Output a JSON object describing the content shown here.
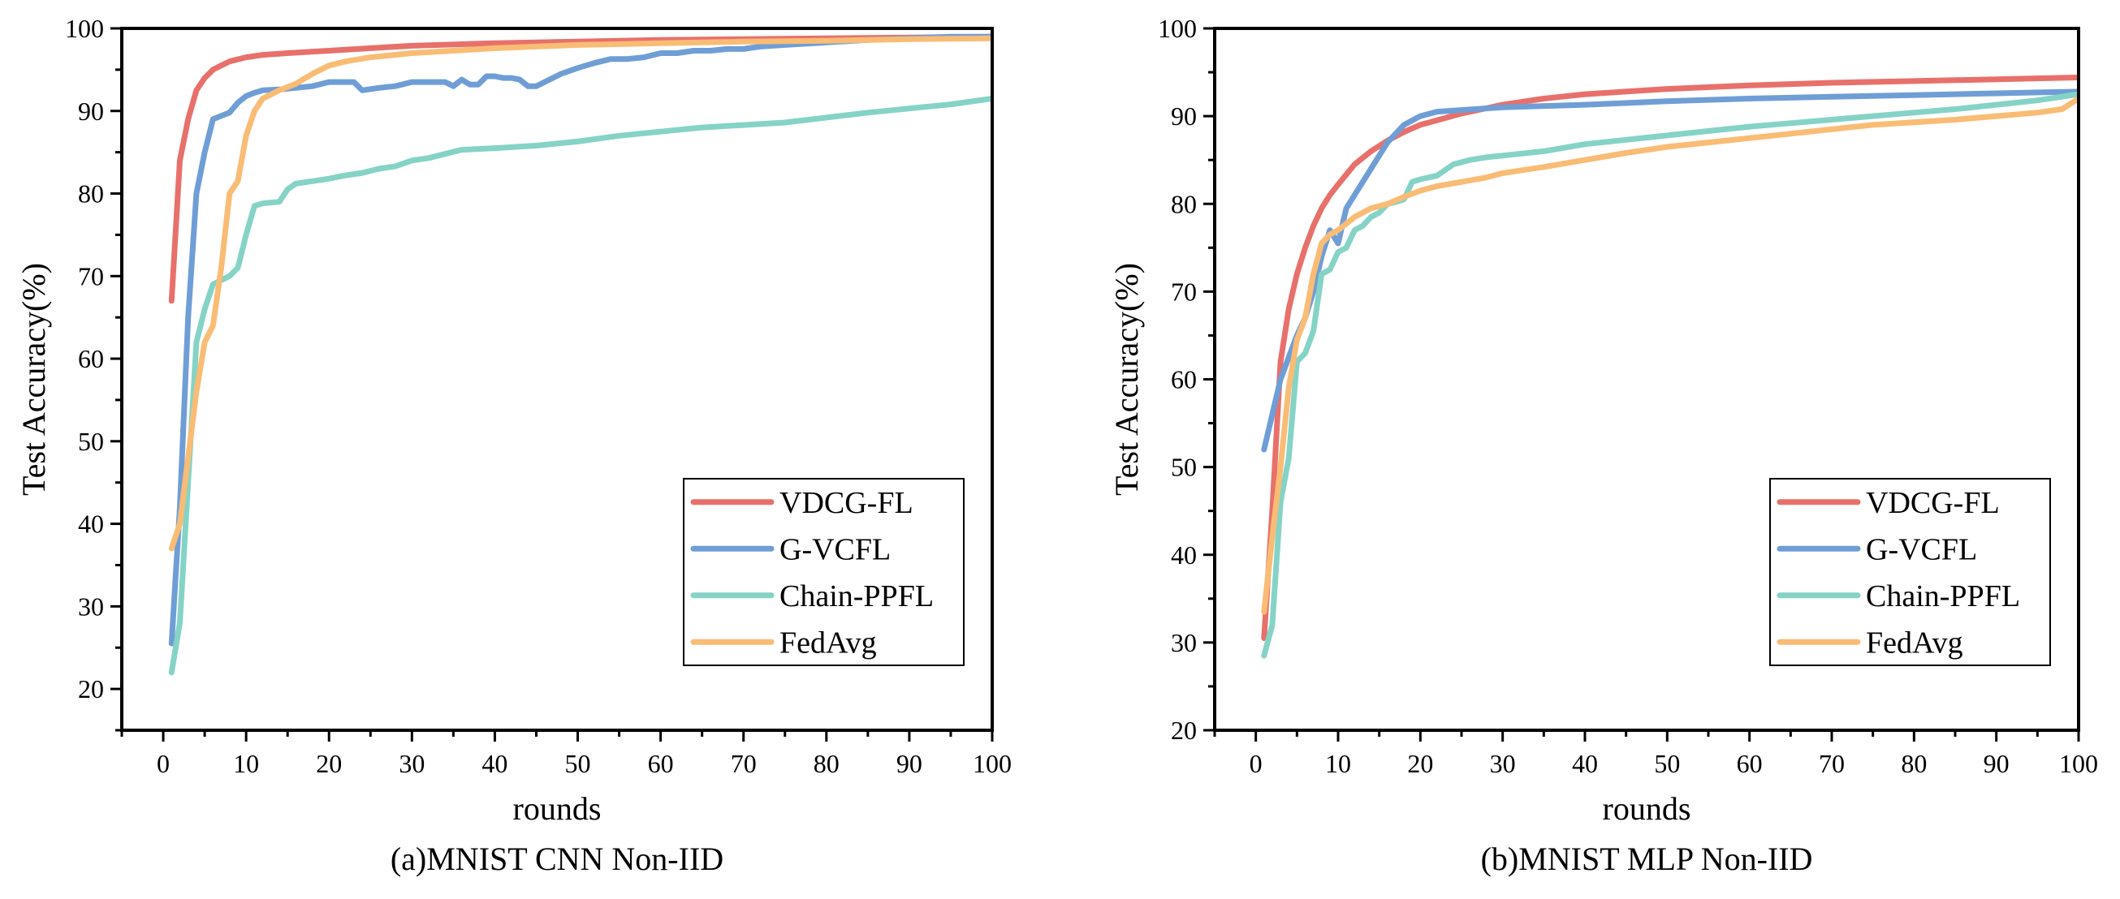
{
  "chart_data": [
    {
      "type": "line",
      "caption": "(a)MNIST CNN Non-IID",
      "xlabel": "rounds",
      "ylabel": "Test Accuracy(%)",
      "xlim": [
        -5,
        100
      ],
      "ylim": [
        15,
        100
      ],
      "xticks": [
        0,
        10,
        20,
        30,
        40,
        50,
        60,
        70,
        80,
        90,
        100
      ],
      "yticks": [
        20,
        30,
        40,
        50,
        60,
        70,
        80,
        90,
        100
      ],
      "grid": false,
      "legend_position": "bottom-right",
      "series": [
        {
          "name": "VDCG-FL",
          "color": "#e8706b",
          "x": [
            1,
            2,
            3,
            4,
            5,
            6,
            7,
            8,
            10,
            12,
            15,
            20,
            25,
            30,
            40,
            50,
            60,
            70,
            80,
            90,
            100
          ],
          "y": [
            67,
            84,
            89,
            92.5,
            94,
            95,
            95.5,
            96,
            96.5,
            96.8,
            97,
            97.3,
            97.6,
            97.9,
            98.2,
            98.4,
            98.6,
            98.7,
            98.8,
            98.9,
            99
          ]
        },
        {
          "name": "G-VCFL",
          "color": "#6f9ed6",
          "x": [
            1,
            2,
            3,
            4,
            5,
            6,
            8,
            9,
            10,
            11,
            12,
            14,
            16,
            18,
            20,
            22,
            23,
            24,
            26,
            28,
            30,
            32,
            34,
            35,
            36,
            37,
            38,
            39,
            40,
            41,
            42,
            43,
            44,
            45,
            46,
            48,
            50,
            52,
            54,
            56,
            58,
            60,
            62,
            64,
            66,
            68,
            70,
            72,
            75,
            80,
            85,
            90,
            95,
            100
          ],
          "y": [
            25.5,
            42,
            65,
            80,
            85,
            89,
            89.8,
            91,
            91.8,
            92.2,
            92.5,
            92.6,
            92.8,
            93,
            93.5,
            93.5,
            93.5,
            92.5,
            92.8,
            93,
            93.5,
            93.5,
            93.5,
            93,
            93.8,
            93.2,
            93.2,
            94.2,
            94.2,
            94,
            94,
            93.8,
            93,
            93,
            93.5,
            94.5,
            95.2,
            95.8,
            96.3,
            96.3,
            96.5,
            97,
            97,
            97.3,
            97.3,
            97.5,
            97.5,
            97.8,
            98,
            98.3,
            98.6,
            98.8,
            99,
            99
          ]
        },
        {
          "name": "Chain-PPFL",
          "color": "#85d3c6",
          "x": [
            1,
            2,
            3,
            4,
            5,
            6,
            7,
            8,
            9,
            10,
            11,
            12,
            14,
            15,
            16,
            18,
            20,
            22,
            24,
            26,
            28,
            30,
            32,
            34,
            36,
            40,
            45,
            50,
            55,
            60,
            65,
            70,
            75,
            80,
            85,
            90,
            95,
            100
          ],
          "y": [
            22,
            28,
            45,
            62,
            66,
            69,
            69.5,
            70,
            71,
            75,
            78.5,
            78.8,
            79,
            80.5,
            81.2,
            81.5,
            81.8,
            82.2,
            82.5,
            83,
            83.3,
            84,
            84.3,
            84.8,
            85.3,
            85.5,
            85.8,
            86.3,
            87,
            87.5,
            88,
            88.3,
            88.6,
            89.2,
            89.8,
            90.3,
            90.8,
            91.5
          ]
        },
        {
          "name": "FedAvg",
          "color": "#f9bc75",
          "x": [
            1,
            2,
            3,
            4,
            5,
            6,
            7,
            8,
            9,
            10,
            11,
            12,
            14,
            16,
            18,
            20,
            22,
            25,
            30,
            35,
            40,
            50,
            60,
            70,
            80,
            90,
            100
          ],
          "y": [
            37,
            40,
            48,
            56,
            62,
            64,
            71,
            80,
            81.5,
            87,
            90,
            91.5,
            92.5,
            93.3,
            94.5,
            95.5,
            96,
            96.5,
            97,
            97.3,
            97.6,
            98,
            98.2,
            98.4,
            98.5,
            98.7,
            98.8
          ]
        }
      ]
    },
    {
      "type": "line",
      "caption": "(b)MNIST MLP Non-IID",
      "xlabel": "rounds",
      "ylabel": "Test Accuracy(%)",
      "xlim": [
        -5,
        100
      ],
      "ylim": [
        20,
        100
      ],
      "xticks": [
        0,
        10,
        20,
        30,
        40,
        50,
        60,
        70,
        80,
        90,
        100
      ],
      "yticks": [
        20,
        30,
        40,
        50,
        60,
        70,
        80,
        90,
        100
      ],
      "grid": false,
      "legend_position": "bottom-right",
      "series": [
        {
          "name": "VDCG-FL",
          "color": "#e8706b",
          "x": [
            1,
            2,
            3,
            4,
            5,
            6,
            7,
            8,
            9,
            10,
            12,
            14,
            16,
            18,
            20,
            25,
            30,
            35,
            40,
            50,
            60,
            70,
            80,
            90,
            100
          ],
          "y": [
            30.5,
            45,
            62,
            68,
            72,
            75,
            77.5,
            79.5,
            81,
            82.2,
            84.5,
            86,
            87.2,
            88.2,
            89,
            90.3,
            91.3,
            92,
            92.5,
            93.1,
            93.5,
            93.8,
            94,
            94.2,
            94.4
          ]
        },
        {
          "name": "G-VCFL",
          "color": "#6f9ed6",
          "x": [
            1,
            3,
            5,
            6,
            7,
            8,
            9,
            10,
            11,
            12,
            14,
            16,
            18,
            20,
            22,
            25,
            30,
            40,
            50,
            60,
            70,
            80,
            90,
            100
          ],
          "y": [
            52,
            60,
            65,
            67,
            70,
            74,
            77,
            75.5,
            79.5,
            81,
            84,
            87,
            89,
            90,
            90.5,
            90.7,
            91,
            91.3,
            91.7,
            92,
            92.2,
            92.4,
            92.6,
            92.8
          ]
        },
        {
          "name": "Chain-PPFL",
          "color": "#85d3c6",
          "x": [
            1,
            2,
            3,
            4,
            5,
            6,
            7,
            8,
            9,
            10,
            11,
            12,
            13,
            14,
            15,
            16,
            17,
            18,
            19,
            20,
            22,
            24,
            26,
            28,
            30,
            35,
            40,
            45,
            50,
            55,
            60,
            65,
            70,
            75,
            80,
            85,
            90,
            95,
            100
          ],
          "y": [
            28.5,
            32,
            46,
            51,
            62,
            63,
            65.5,
            72,
            72.5,
            74.5,
            75,
            77,
            77.5,
            78.5,
            79,
            80,
            80.2,
            80.5,
            82.5,
            82.8,
            83.2,
            84.5,
            85,
            85.3,
            85.5,
            86,
            86.8,
            87.3,
            87.8,
            88.3,
            88.8,
            89.2,
            89.6,
            90,
            90.4,
            90.8,
            91.3,
            91.8,
            92.5
          ]
        },
        {
          "name": "FedAvg",
          "color": "#f9bc75",
          "x": [
            1,
            2,
            3,
            4,
            5,
            6,
            7,
            8,
            9,
            10,
            12,
            14,
            16,
            18,
            20,
            22,
            25,
            28,
            30,
            35,
            40,
            45,
            50,
            55,
            60,
            65,
            70,
            75,
            80,
            85,
            90,
            95,
            98,
            100
          ],
          "y": [
            33.5,
            42,
            50,
            59,
            64.5,
            67,
            72,
            75.5,
            76.5,
            77,
            78.5,
            79.5,
            80,
            80.8,
            81.5,
            82,
            82.5,
            83,
            83.5,
            84.2,
            85,
            85.8,
            86.5,
            87,
            87.5,
            88,
            88.5,
            89,
            89.3,
            89.6,
            90,
            90.4,
            90.8,
            92
          ]
        }
      ]
    }
  ]
}
